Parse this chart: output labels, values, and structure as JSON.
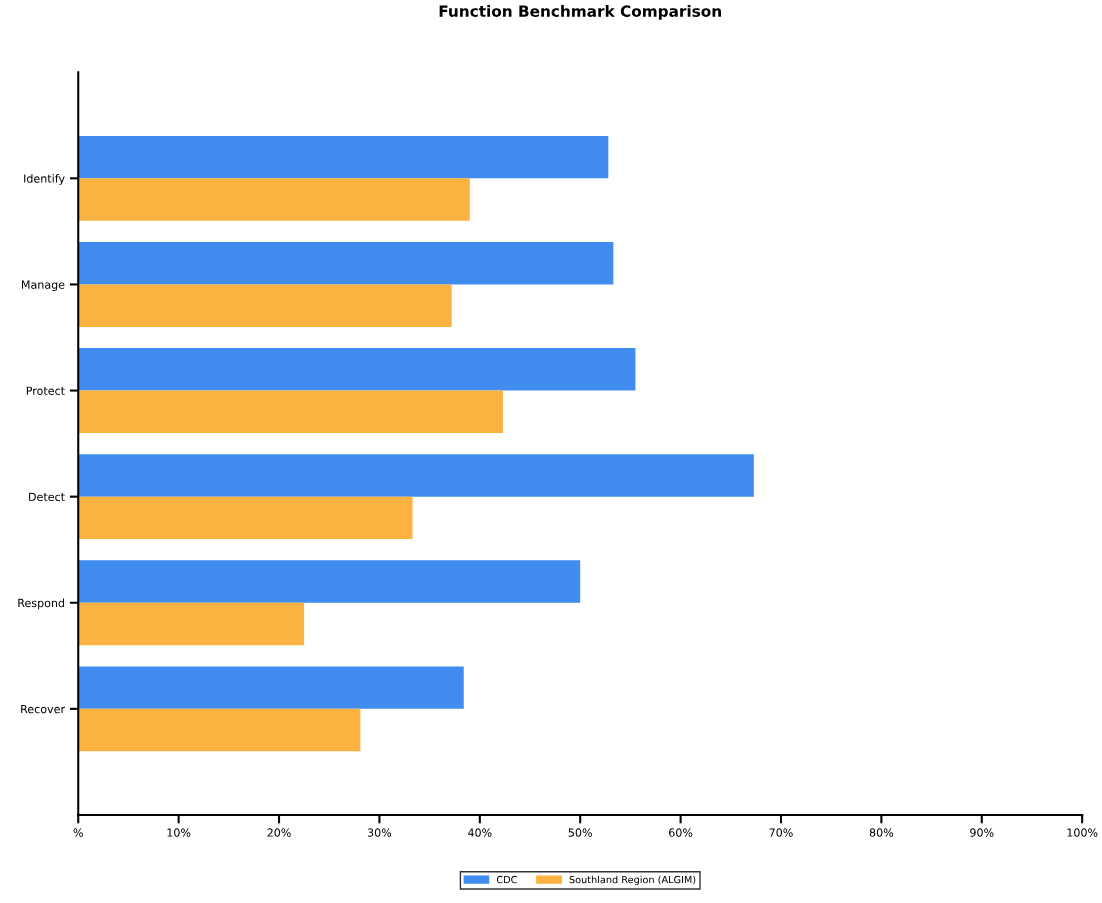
{
  "chart_data": {
    "type": "bar",
    "orientation": "horizontal",
    "title": "Function Benchmark Comparison",
    "categories": [
      "Identify",
      "Manage",
      "Protect",
      "Detect",
      "Respond",
      "Recover"
    ],
    "series": [
      {
        "name": "CDC",
        "color": "#418def",
        "values": [
          52.8,
          53.3,
          55.5,
          67.3,
          50.0,
          38.4
        ]
      },
      {
        "name": "Southland Region (ALGIM)",
        "color": "#fbb241",
        "values": [
          39.0,
          37.2,
          42.3,
          33.3,
          22.5,
          28.1
        ]
      }
    ],
    "xlim": [
      0,
      100
    ],
    "xticks": [
      {
        "value": 0,
        "label": "%"
      },
      {
        "value": 10,
        "label": "10%"
      },
      {
        "value": 20,
        "label": "20%"
      },
      {
        "value": 30,
        "label": "30%"
      },
      {
        "value": 40,
        "label": "40%"
      },
      {
        "value": 50,
        "label": "50%"
      },
      {
        "value": 60,
        "label": "60%"
      },
      {
        "value": 70,
        "label": "70%"
      },
      {
        "value": 80,
        "label": "80%"
      },
      {
        "value": 90,
        "label": "90%"
      },
      {
        "value": 100,
        "label": "100%"
      }
    ],
    "grid": false,
    "legend": "bottom"
  }
}
